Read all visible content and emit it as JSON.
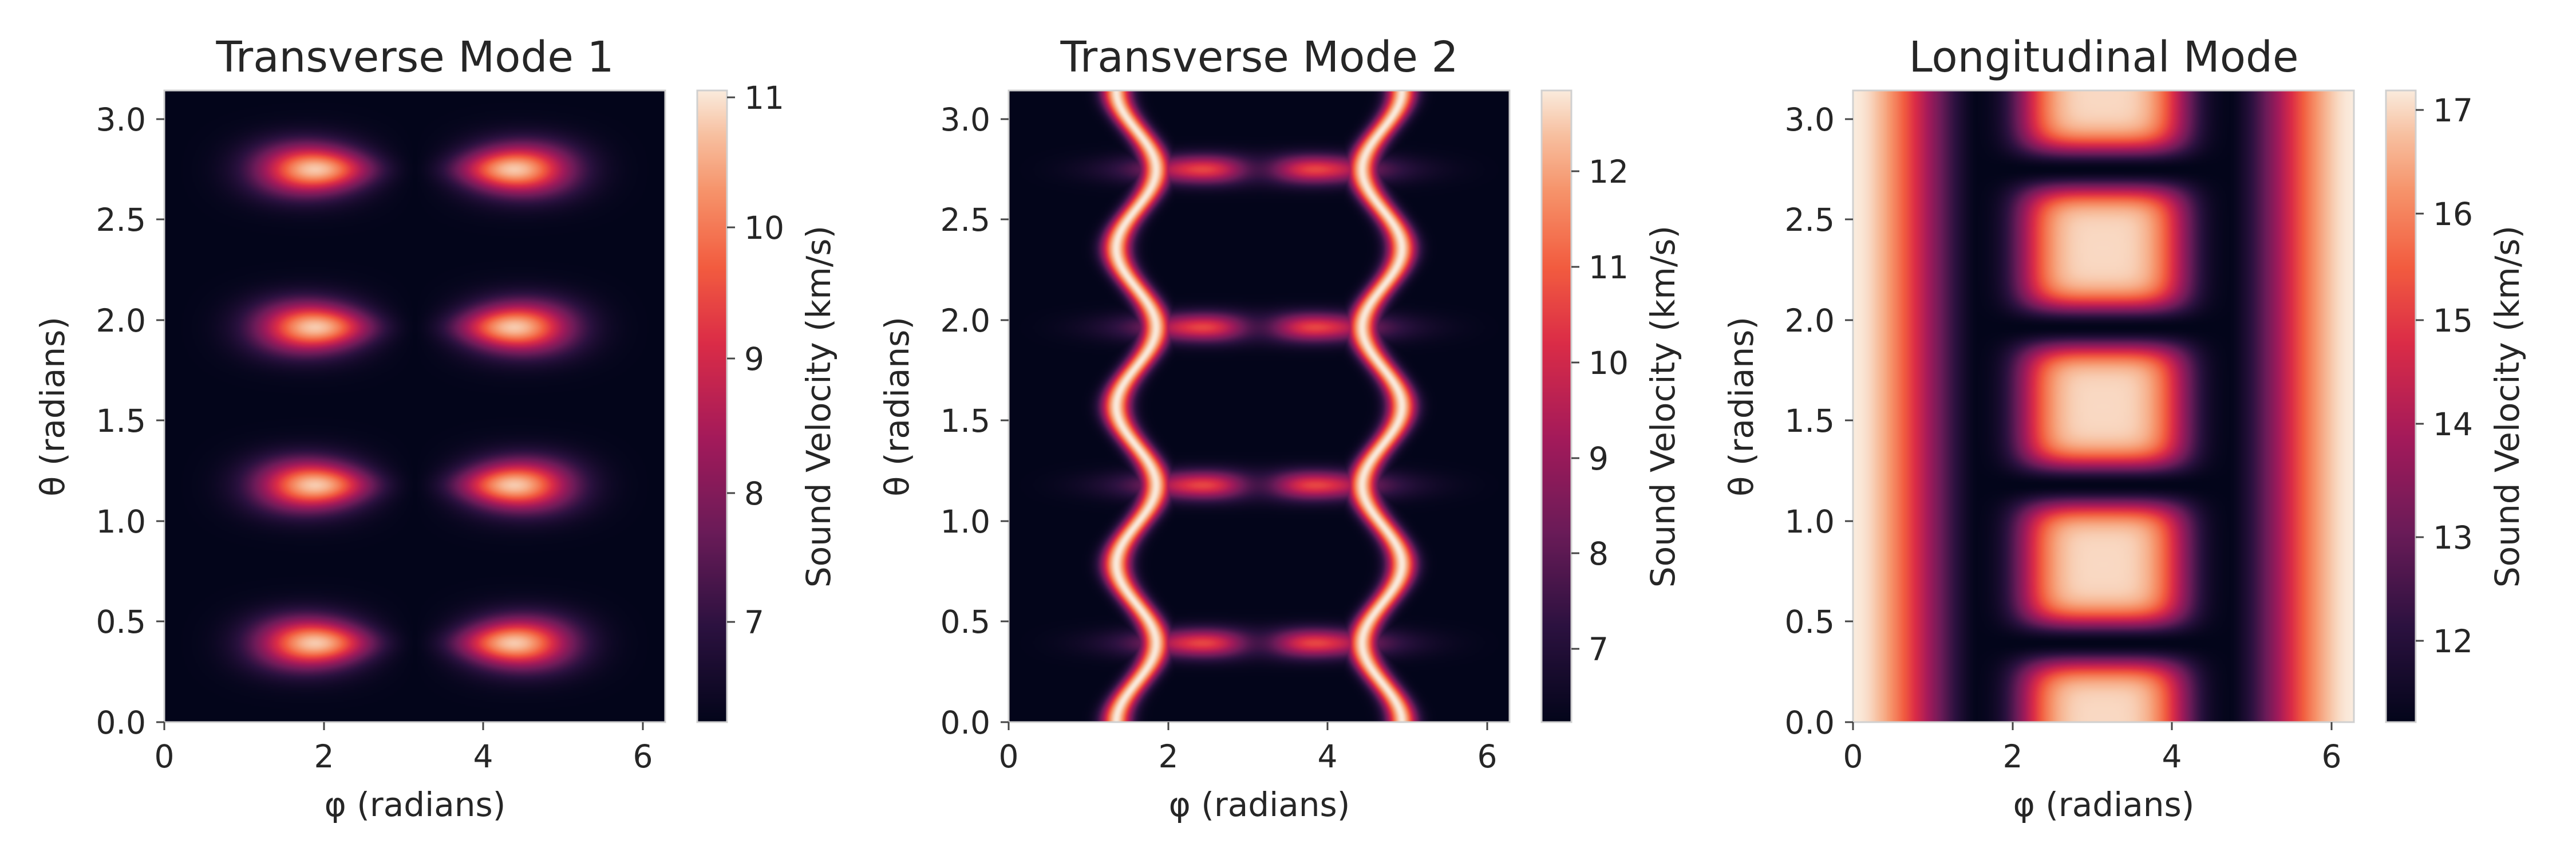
{
  "chart_data": [
    {
      "type": "heatmap",
      "title": "Transverse Mode 1",
      "xlabel": "φ (radians)",
      "ylabel": "θ (radians)",
      "colorbar_label": "Sound Velocity (km/s)",
      "colormap": "rocket",
      "xlim": [
        0,
        6.283
      ],
      "ylim": [
        0,
        3.1416
      ],
      "xticks": [
        0,
        2,
        4,
        6
      ],
      "xtick_labels": [
        "0",
        "2",
        "4",
        "6"
      ],
      "yticks": [
        0.0,
        0.5,
        1.0,
        1.5,
        2.0,
        2.5,
        3.0
      ],
      "ytick_labels": [
        "0.0",
        "0.5",
        "1.0",
        "1.5",
        "2.0",
        "2.5",
        "3.0"
      ],
      "clim": [
        6.25,
        11.15
      ],
      "cbar_ticks": [
        7,
        8,
        9,
        10,
        11
      ],
      "cbar_tick_labels": [
        "7",
        "8",
        "9",
        "10",
        "11"
      ],
      "pattern": "eight bright arrowhead-shaped peaks at φ ≈ 1.95 and 4.35, θ ≈ 0.40, 1.20, 1.96, 2.75; dark vertical band at φ ≈ 3.14"
    },
    {
      "type": "heatmap",
      "title": "Transverse Mode 2",
      "xlabel": "φ (radians)",
      "ylabel": "θ (radians)",
      "colorbar_label": "Sound Velocity (km/s)",
      "colormap": "rocket",
      "xlim": [
        0,
        6.283
      ],
      "ylim": [
        0,
        3.1416
      ],
      "xticks": [
        0,
        2,
        4,
        6
      ],
      "xtick_labels": [
        "0",
        "2",
        "4",
        "6"
      ],
      "yticks": [
        0.0,
        0.5,
        1.0,
        1.5,
        2.0,
        2.5,
        3.0
      ],
      "ytick_labels": [
        "0.0",
        "0.5",
        "1.0",
        "1.5",
        "2.0",
        "2.5",
        "3.0"
      ],
      "clim": [
        6.25,
        12.85
      ],
      "cbar_ticks": [
        7,
        8,
        9,
        10,
        11,
        12
      ],
      "cbar_tick_labels": [
        "7",
        "8",
        "9",
        "10",
        "11",
        "12"
      ],
      "pattern": "bright elliptical ridges: horizontal ellipses centred at φ ≈ 3.14, θ ≈ 0.40, 1.20, 1.96, 2.75; vertical arcs at φ ≈ 1.6 and 4.7; dark squares centred at φ ≈ 3.14 between ridges"
    },
    {
      "type": "heatmap",
      "title": "Longitudinal Mode",
      "xlabel": "φ (radians)",
      "ylabel": "θ (radians)",
      "colorbar_label": "Sound Velocity (km/s)",
      "colormap": "rocket",
      "xlim": [
        0,
        6.283
      ],
      "ylim": [
        0,
        3.1416
      ],
      "xticks": [
        0,
        2,
        4,
        6
      ],
      "xtick_labels": [
        "0",
        "2",
        "4",
        "6"
      ],
      "yticks": [
        0.0,
        0.5,
        1.0,
        1.5,
        2.0,
        2.5,
        3.0
      ],
      "ytick_labels": [
        "0.0",
        "0.5",
        "1.0",
        "1.5",
        "2.0",
        "2.5",
        "3.0"
      ],
      "clim": [
        11.15,
        17.2
      ],
      "cbar_ticks": [
        12,
        13,
        14,
        15,
        16,
        17
      ],
      "cbar_tick_labels": [
        "12",
        "13",
        "14",
        "15",
        "16",
        "17"
      ],
      "pattern": "bright vertical bands near φ = 0 and φ = 6.28; dark vertical bands at φ ≈ 1.6 and 4.7; bright ovals centred at φ ≈ 3.14, θ ≈ 0.79, 1.57, 2.36 with dark seams at θ ≈ 0.40, 1.20, 1.96, 2.75"
    }
  ]
}
